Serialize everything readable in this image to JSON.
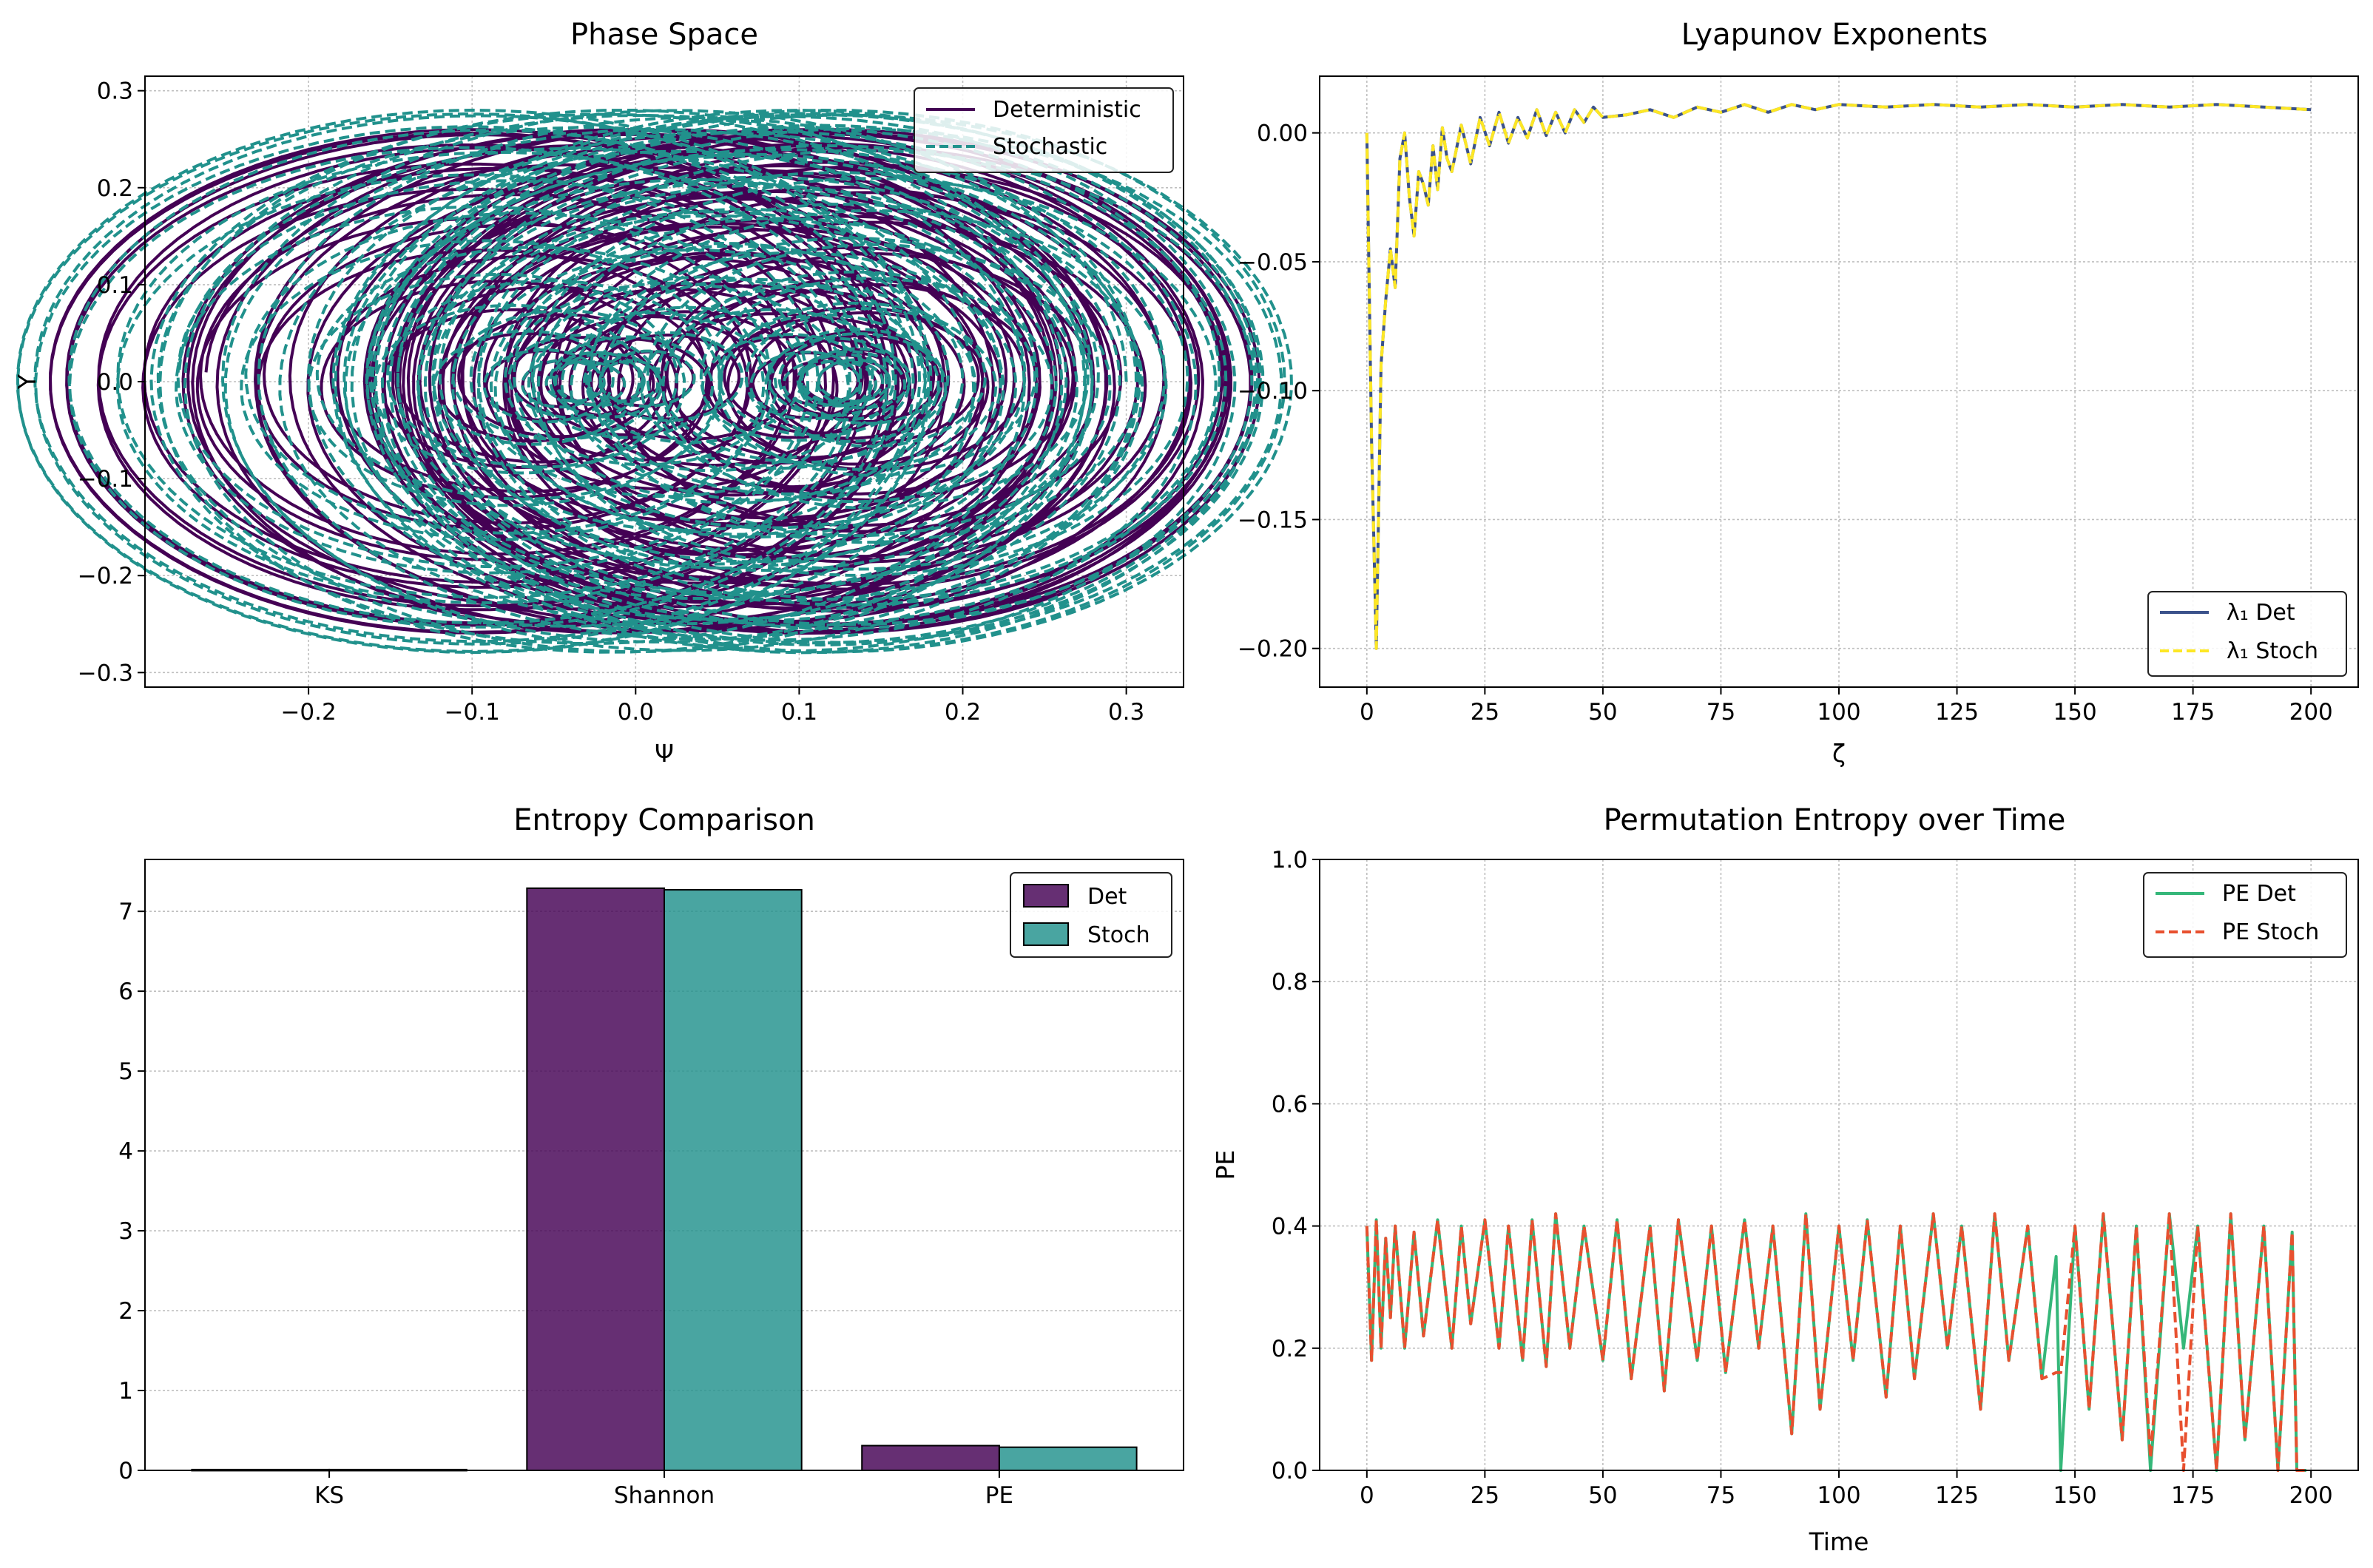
{
  "chart_data": [
    {
      "type": "line",
      "title": "Phase Space",
      "xlabel": "Ψ",
      "ylabel": "Y",
      "xlim": [
        -0.3,
        0.335
      ],
      "ylim": [
        -0.315,
        0.315
      ],
      "xticks": [
        -0.2,
        -0.1,
        0.0,
        0.1,
        0.2,
        0.3
      ],
      "xtick_labels": [
        "−0.2",
        "−0.1",
        "0.0",
        "0.1",
        "0.2",
        "0.3"
      ],
      "yticks": [
        -0.3,
        -0.2,
        -0.1,
        0.0,
        0.1,
        0.2,
        0.3
      ],
      "ytick_labels": [
        "−0.3",
        "−0.2",
        "−0.1",
        "0.0",
        "0.1",
        "0.2",
        "0.3"
      ],
      "grid": true,
      "legend_position": "top-right",
      "series": [
        {
          "name": "Deterministic",
          "color": "#440154",
          "style": "solid",
          "model": {
            "center_x": 0.02,
            "amp_x": 0.12,
            "center_freq": 0.05,
            "radius_base": 0.14,
            "radius_amp": 0.12,
            "radius_freq": 0.13,
            "theta_freq": 3.0,
            "t_max": 200
          }
        },
        {
          "name": "Stochastic",
          "color": "#21918c",
          "style": "dashed",
          "model": {
            "center_x": 0.02,
            "amp_x": 0.12,
            "center_freq": 0.05,
            "radius_base": 0.15,
            "radius_amp": 0.13,
            "radius_freq": 0.13,
            "theta_freq": 3.0,
            "t_max": 200
          }
        }
      ]
    },
    {
      "type": "line",
      "title": "Lyapunov Exponents",
      "xlabel": "ζ",
      "ylabel": "",
      "xlim": [
        -10,
        210
      ],
      "ylim": [
        -0.215,
        0.022
      ],
      "xticks": [
        0,
        25,
        50,
        75,
        100,
        125,
        150,
        175,
        200
      ],
      "yticks": [
        -0.2,
        -0.15,
        -0.1,
        -0.05,
        0.0
      ],
      "ytick_labels": [
        "−0.20",
        "−0.15",
        "−0.10",
        "−0.05",
        "0.00"
      ],
      "grid": true,
      "legend_position": "bottom-right",
      "series": [
        {
          "name": "λ₁ Det",
          "color": "#3b528b",
          "style": "solid",
          "x": [
            0,
            1,
            2,
            3,
            4,
            5,
            6,
            7,
            8,
            9,
            10,
            11,
            12,
            13,
            14,
            15,
            16,
            17,
            18,
            20,
            22,
            24,
            26,
            28,
            30,
            32,
            34,
            36,
            38,
            40,
            42,
            44,
            46,
            48,
            50,
            55,
            60,
            65,
            70,
            75,
            80,
            85,
            90,
            95,
            100,
            110,
            120,
            130,
            140,
            150,
            160,
            170,
            180,
            190,
            200
          ],
          "values": [
            0.0,
            -0.12,
            -0.2,
            -0.09,
            -0.065,
            -0.045,
            -0.06,
            -0.01,
            0.0,
            -0.025,
            -0.04,
            -0.015,
            -0.02,
            -0.028,
            -0.005,
            -0.022,
            0.002,
            -0.01,
            -0.015,
            0.003,
            -0.012,
            0.006,
            -0.005,
            0.008,
            -0.004,
            0.006,
            -0.002,
            0.009,
            -0.001,
            0.008,
            0.0,
            0.009,
            0.004,
            0.01,
            0.006,
            0.007,
            0.009,
            0.006,
            0.01,
            0.008,
            0.011,
            0.008,
            0.011,
            0.009,
            0.011,
            0.01,
            0.011,
            0.01,
            0.011,
            0.01,
            0.011,
            0.01,
            0.011,
            0.01,
            0.009
          ]
        },
        {
          "name": "λ₁ Stoch",
          "color": "#fde725",
          "style": "dashed",
          "x": [
            0,
            1,
            2,
            3,
            4,
            5,
            6,
            7,
            8,
            9,
            10,
            11,
            12,
            13,
            14,
            15,
            16,
            17,
            18,
            20,
            22,
            24,
            26,
            28,
            30,
            32,
            34,
            36,
            38,
            40,
            42,
            44,
            46,
            48,
            50,
            55,
            60,
            65,
            70,
            75,
            80,
            85,
            90,
            95,
            100,
            110,
            120,
            130,
            140,
            150,
            160,
            170,
            180,
            190,
            200
          ],
          "values": [
            0.0,
            -0.12,
            -0.2,
            -0.09,
            -0.065,
            -0.045,
            -0.06,
            -0.01,
            0.0,
            -0.025,
            -0.04,
            -0.015,
            -0.02,
            -0.028,
            -0.005,
            -0.022,
            0.002,
            -0.01,
            -0.015,
            0.003,
            -0.012,
            0.006,
            -0.005,
            0.008,
            -0.004,
            0.006,
            -0.002,
            0.009,
            -0.001,
            0.008,
            0.0,
            0.009,
            0.004,
            0.01,
            0.006,
            0.007,
            0.009,
            0.006,
            0.01,
            0.008,
            0.011,
            0.008,
            0.011,
            0.009,
            0.011,
            0.01,
            0.011,
            0.01,
            0.011,
            0.01,
            0.011,
            0.01,
            0.011,
            0.01,
            0.009
          ]
        }
      ]
    },
    {
      "type": "bar",
      "title": "Entropy Comparison",
      "categories": [
        "KS",
        "Shannon",
        "PE"
      ],
      "ylim": [
        0,
        7.65
      ],
      "yticks": [
        0,
        1,
        2,
        3,
        4,
        5,
        6,
        7
      ],
      "grid": true,
      "legend_position": "top-right",
      "series": [
        {
          "name": "Det",
          "color": "#440154",
          "values": [
            0.01,
            7.29,
            0.31
          ]
        },
        {
          "name": "Stoch",
          "color": "#21918c",
          "values": [
            0.01,
            7.27,
            0.29
          ]
        }
      ]
    },
    {
      "type": "line",
      "title": "Permutation Entropy over Time",
      "xlabel": "Time",
      "ylabel": "PE",
      "xlim": [
        -10,
        210
      ],
      "ylim": [
        0.0,
        1.0
      ],
      "xticks": [
        0,
        25,
        50,
        75,
        100,
        125,
        150,
        175,
        200
      ],
      "yticks": [
        0.0,
        0.2,
        0.4,
        0.6,
        0.8,
        1.0
      ],
      "ytick_labels": [
        "0.0",
        "0.2",
        "0.4",
        "0.6",
        "0.8",
        "1.0"
      ],
      "grid": true,
      "legend_position": "top-right",
      "series": [
        {
          "name": "PE Det",
          "color": "#35b779",
          "style": "solid",
          "x": [
            0,
            1,
            2,
            3,
            4,
            5,
            6,
            8,
            10,
            12,
            15,
            18,
            20,
            22,
            25,
            28,
            30,
            33,
            35,
            38,
            40,
            43,
            46,
            50,
            53,
            56,
            60,
            63,
            66,
            70,
            73,
            76,
            80,
            83,
            86,
            90,
            93,
            96,
            100,
            103,
            106,
            110,
            113,
            116,
            120,
            123,
            126,
            130,
            133,
            136,
            140,
            143,
            146,
            147,
            150,
            153,
            156,
            160,
            163,
            166,
            170,
            173,
            176,
            180,
            183,
            186,
            190,
            193,
            196,
            197,
            199
          ],
          "values": [
            0.4,
            0.18,
            0.41,
            0.2,
            0.38,
            0.25,
            0.4,
            0.2,
            0.39,
            0.22,
            0.41,
            0.2,
            0.4,
            0.24,
            0.41,
            0.2,
            0.4,
            0.18,
            0.41,
            0.17,
            0.42,
            0.2,
            0.4,
            0.18,
            0.41,
            0.15,
            0.4,
            0.13,
            0.41,
            0.18,
            0.4,
            0.16,
            0.41,
            0.2,
            0.4,
            0.06,
            0.42,
            0.1,
            0.4,
            0.18,
            0.41,
            0.12,
            0.4,
            0.15,
            0.42,
            0.2,
            0.4,
            0.1,
            0.42,
            0.18,
            0.4,
            0.15,
            0.35,
            0.0,
            0.4,
            0.1,
            0.42,
            0.05,
            0.4,
            0.0,
            0.42,
            0.2,
            0.4,
            0.0,
            0.42,
            0.05,
            0.4,
            0.0,
            0.39,
            0.0,
            0.0
          ]
        },
        {
          "name": "PE Stoch",
          "color": "#e8502f",
          "style": "dashed",
          "x": [
            0,
            1,
            2,
            3,
            4,
            5,
            6,
            8,
            10,
            12,
            15,
            18,
            20,
            22,
            25,
            28,
            30,
            33,
            35,
            38,
            40,
            43,
            46,
            50,
            53,
            56,
            60,
            63,
            66,
            70,
            73,
            76,
            80,
            83,
            86,
            90,
            93,
            96,
            100,
            103,
            106,
            110,
            113,
            116,
            120,
            123,
            126,
            130,
            133,
            136,
            140,
            143,
            146,
            147,
            150,
            153,
            156,
            160,
            163,
            166,
            170,
            173,
            176,
            180,
            183,
            186,
            190,
            193,
            196,
            197,
            199
          ],
          "values": [
            0.4,
            0.18,
            0.41,
            0.2,
            0.38,
            0.25,
            0.4,
            0.2,
            0.39,
            0.22,
            0.41,
            0.2,
            0.4,
            0.24,
            0.41,
            0.2,
            0.4,
            0.18,
            0.41,
            0.17,
            0.42,
            0.2,
            0.4,
            0.18,
            0.41,
            0.15,
            0.4,
            0.13,
            0.41,
            0.18,
            0.4,
            0.16,
            0.41,
            0.2,
            0.4,
            0.06,
            0.42,
            0.1,
            0.4,
            0.18,
            0.41,
            0.12,
            0.4,
            0.15,
            0.42,
            0.2,
            0.4,
            0.1,
            0.42,
            0.18,
            0.4,
            0.15,
            0.16,
            0.16,
            0.4,
            0.1,
            0.42,
            0.05,
            0.4,
            0.02,
            0.42,
            0.0,
            0.4,
            0.0,
            0.42,
            0.05,
            0.4,
            0.0,
            0.39,
            0.0,
            0.0
          ]
        }
      ]
    }
  ]
}
